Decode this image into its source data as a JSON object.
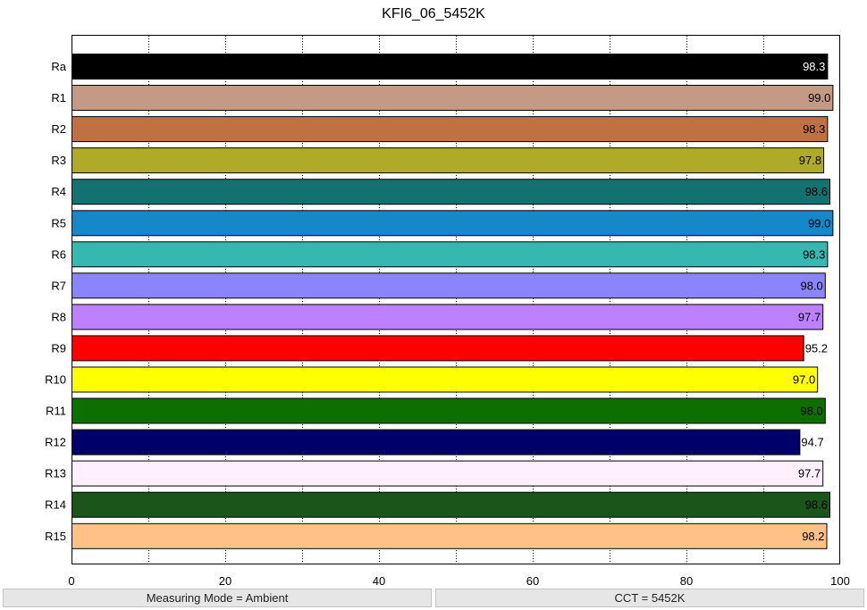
{
  "chart_data": {
    "type": "bar",
    "orientation": "horizontal",
    "title": "KFI6_06_5452K",
    "xlabel": "",
    "ylabel": "",
    "xlim": [
      0,
      100
    ],
    "xticks": [
      "0",
      "20",
      "40",
      "60",
      "80",
      "100"
    ],
    "grid": "vertical-dotted",
    "categories": [
      "Ra",
      "R1",
      "R2",
      "R3",
      "R4",
      "R5",
      "R6",
      "R7",
      "R8",
      "R9",
      "R10",
      "R11",
      "R12",
      "R13",
      "R14",
      "R15"
    ],
    "values": [
      98.3,
      99.0,
      98.3,
      97.8,
      98.6,
      99.0,
      98.3,
      98.0,
      97.7,
      95.2,
      97.0,
      98.0,
      94.7,
      97.7,
      98.6,
      98.2
    ],
    "value_labels": [
      "98.3",
      "99.0",
      "98.3",
      "97.8",
      "98.6",
      "99.0",
      "98.3",
      "98.0",
      "97.7",
      "95.2",
      "97.0",
      "98.0",
      "94.7",
      "97.7",
      "98.6",
      "98.2"
    ],
    "colors": [
      "#000000",
      "#c49a85",
      "#bf7142",
      "#afab29",
      "#117270",
      "#1488c8",
      "#35b8af",
      "#8a85ff",
      "#bd80ff",
      "#ff0000",
      "#ffff00",
      "#0c6f00",
      "#00006a",
      "#fff0fb",
      "#1b5519",
      "#ffc187"
    ],
    "label_colors": [
      "#ffffff",
      "#000000",
      "#000000",
      "#000000",
      "#000000",
      "#000000",
      "#000000",
      "#000000",
      "#000000",
      "#000000",
      "#000000",
      "#000000",
      "#000000",
      "#000000",
      "#000000",
      "#000000"
    ]
  },
  "status": {
    "left": "Measuring Mode = Ambient",
    "right": "CCT = 5452K"
  }
}
